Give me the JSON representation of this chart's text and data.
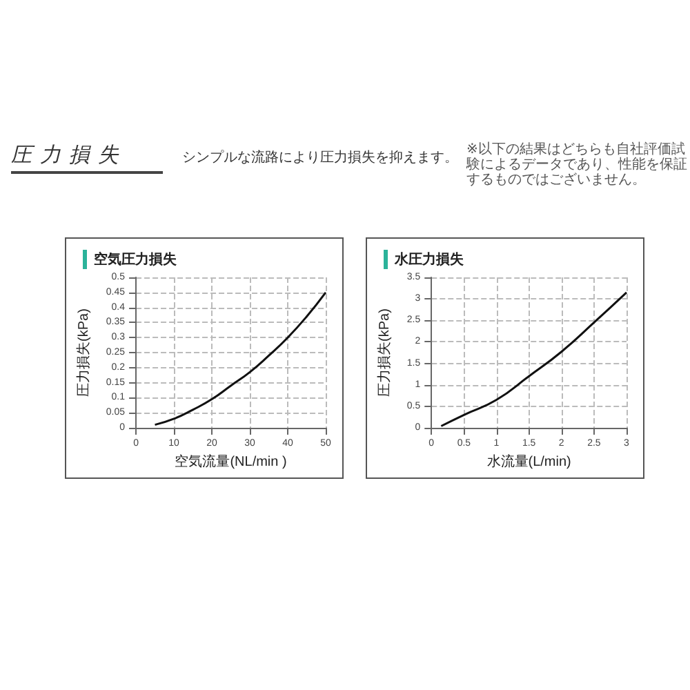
{
  "chart_data": [
    {
      "type": "other",
      "title": "圧力損失",
      "subtitle": "シンプルな流路により圧力損失を抑えます。",
      "annotations": [
        "※以下の結果はどちらも自社評価試験によるデータであり、性能を保証するものではございません。"
      ]
    },
    {
      "type": "line",
      "title": "空気圧力損失",
      "xlabel": "空気流量(NL/min )",
      "ylabel": "圧力損失(kPa)",
      "x": [
        5,
        10,
        15,
        20,
        25,
        30,
        35,
        40,
        45,
        50
      ],
      "values": [
        0.01,
        0.03,
        0.06,
        0.095,
        0.14,
        0.185,
        0.24,
        0.3,
        0.37,
        0.45
      ],
      "color": "#111111",
      "xlim": [
        0,
        50
      ],
      "ylim": [
        0,
        0.5
      ],
      "xticks": [
        0,
        10,
        20,
        30,
        40,
        50
      ],
      "yticks": [
        0,
        0.05,
        0.1,
        0.15,
        0.2,
        0.25,
        0.3,
        0.35,
        0.4,
        0.45,
        0.5
      ],
      "grid": true,
      "marker": "none"
    },
    {
      "type": "line",
      "title": "水圧力損失",
      "xlabel": "水流量(L/min)",
      "ylabel": "圧力損失(kPa)",
      "x": [
        0.15,
        0.5,
        1,
        1.5,
        2,
        2.5,
        3
      ],
      "values": [
        0.04,
        0.3,
        0.65,
        1.2,
        1.77,
        2.45,
        3.15
      ],
      "color": "#111111",
      "xlim": [
        0,
        3
      ],
      "ylim": [
        0,
        3.5
      ],
      "xticks": [
        0,
        0.5,
        1,
        1.5,
        2,
        2.5,
        3
      ],
      "yticks": [
        0,
        0.5,
        1,
        1.5,
        2,
        2.5,
        3,
        3.5
      ],
      "grid": true,
      "marker": "none"
    }
  ]
}
